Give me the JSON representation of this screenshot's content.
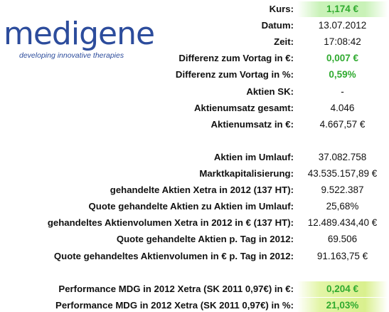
{
  "logo": {
    "name": "medigene",
    "tagline": "developing innovative therapies"
  },
  "rows": [
    {
      "label": "Kurs:",
      "value": "1,174 €",
      "highlight": "green",
      "emphasis": true
    },
    {
      "label": "Datum:",
      "value": "13.07.2012"
    },
    {
      "label": "Zeit:",
      "value": "17:08:42"
    },
    {
      "label": "Differenz zum Vortag in €:",
      "value": "0,007 €",
      "emphasis": true
    },
    {
      "label": "Differenz zum Vortag in %:",
      "value": "0,59%",
      "emphasis": true
    },
    {
      "label": "Aktien SK:",
      "value": "-"
    },
    {
      "label": "Aktienumsatz gesamt:",
      "value": "4.046"
    },
    {
      "label": "Aktienumsatz in €:",
      "value": "4.667,57 €"
    },
    null,
    {
      "label": "Aktien im Umlauf:",
      "value": "37.082.758"
    },
    {
      "label": "Marktkapitalisierung:",
      "value": "43.535.157,89 €"
    },
    {
      "label": "gehandelte Aktien Xetra in 2012 (137 HT):",
      "value": "9.522.387"
    },
    {
      "label": "Quote gehandelte Aktien zu Aktien im Umlauf:",
      "value": "25,68%"
    },
    {
      "label": "gehandeltes Aktienvolumen Xetra in 2012 in € (137 HT):",
      "value": "12.489.434,40 €"
    },
    {
      "label": "Quote gehandelte Aktien p. Tag in 2012:",
      "value": "69.506"
    },
    {
      "label": "Quote gehandeltes Aktienvolumen in € p. Tag in 2012:",
      "value": "91.163,75 €"
    },
    null,
    {
      "label": "Performance MDG in 2012 Xetra (SK 2011 0,97€) in €:",
      "value": "0,204 €",
      "highlight": "yellow",
      "emphasis": true
    },
    {
      "label": "Performance MDG in 2012 Xetra (SK 2011 0,97€) in %:",
      "value": "21,03%",
      "highlight": "yellow",
      "emphasis": true
    }
  ]
}
